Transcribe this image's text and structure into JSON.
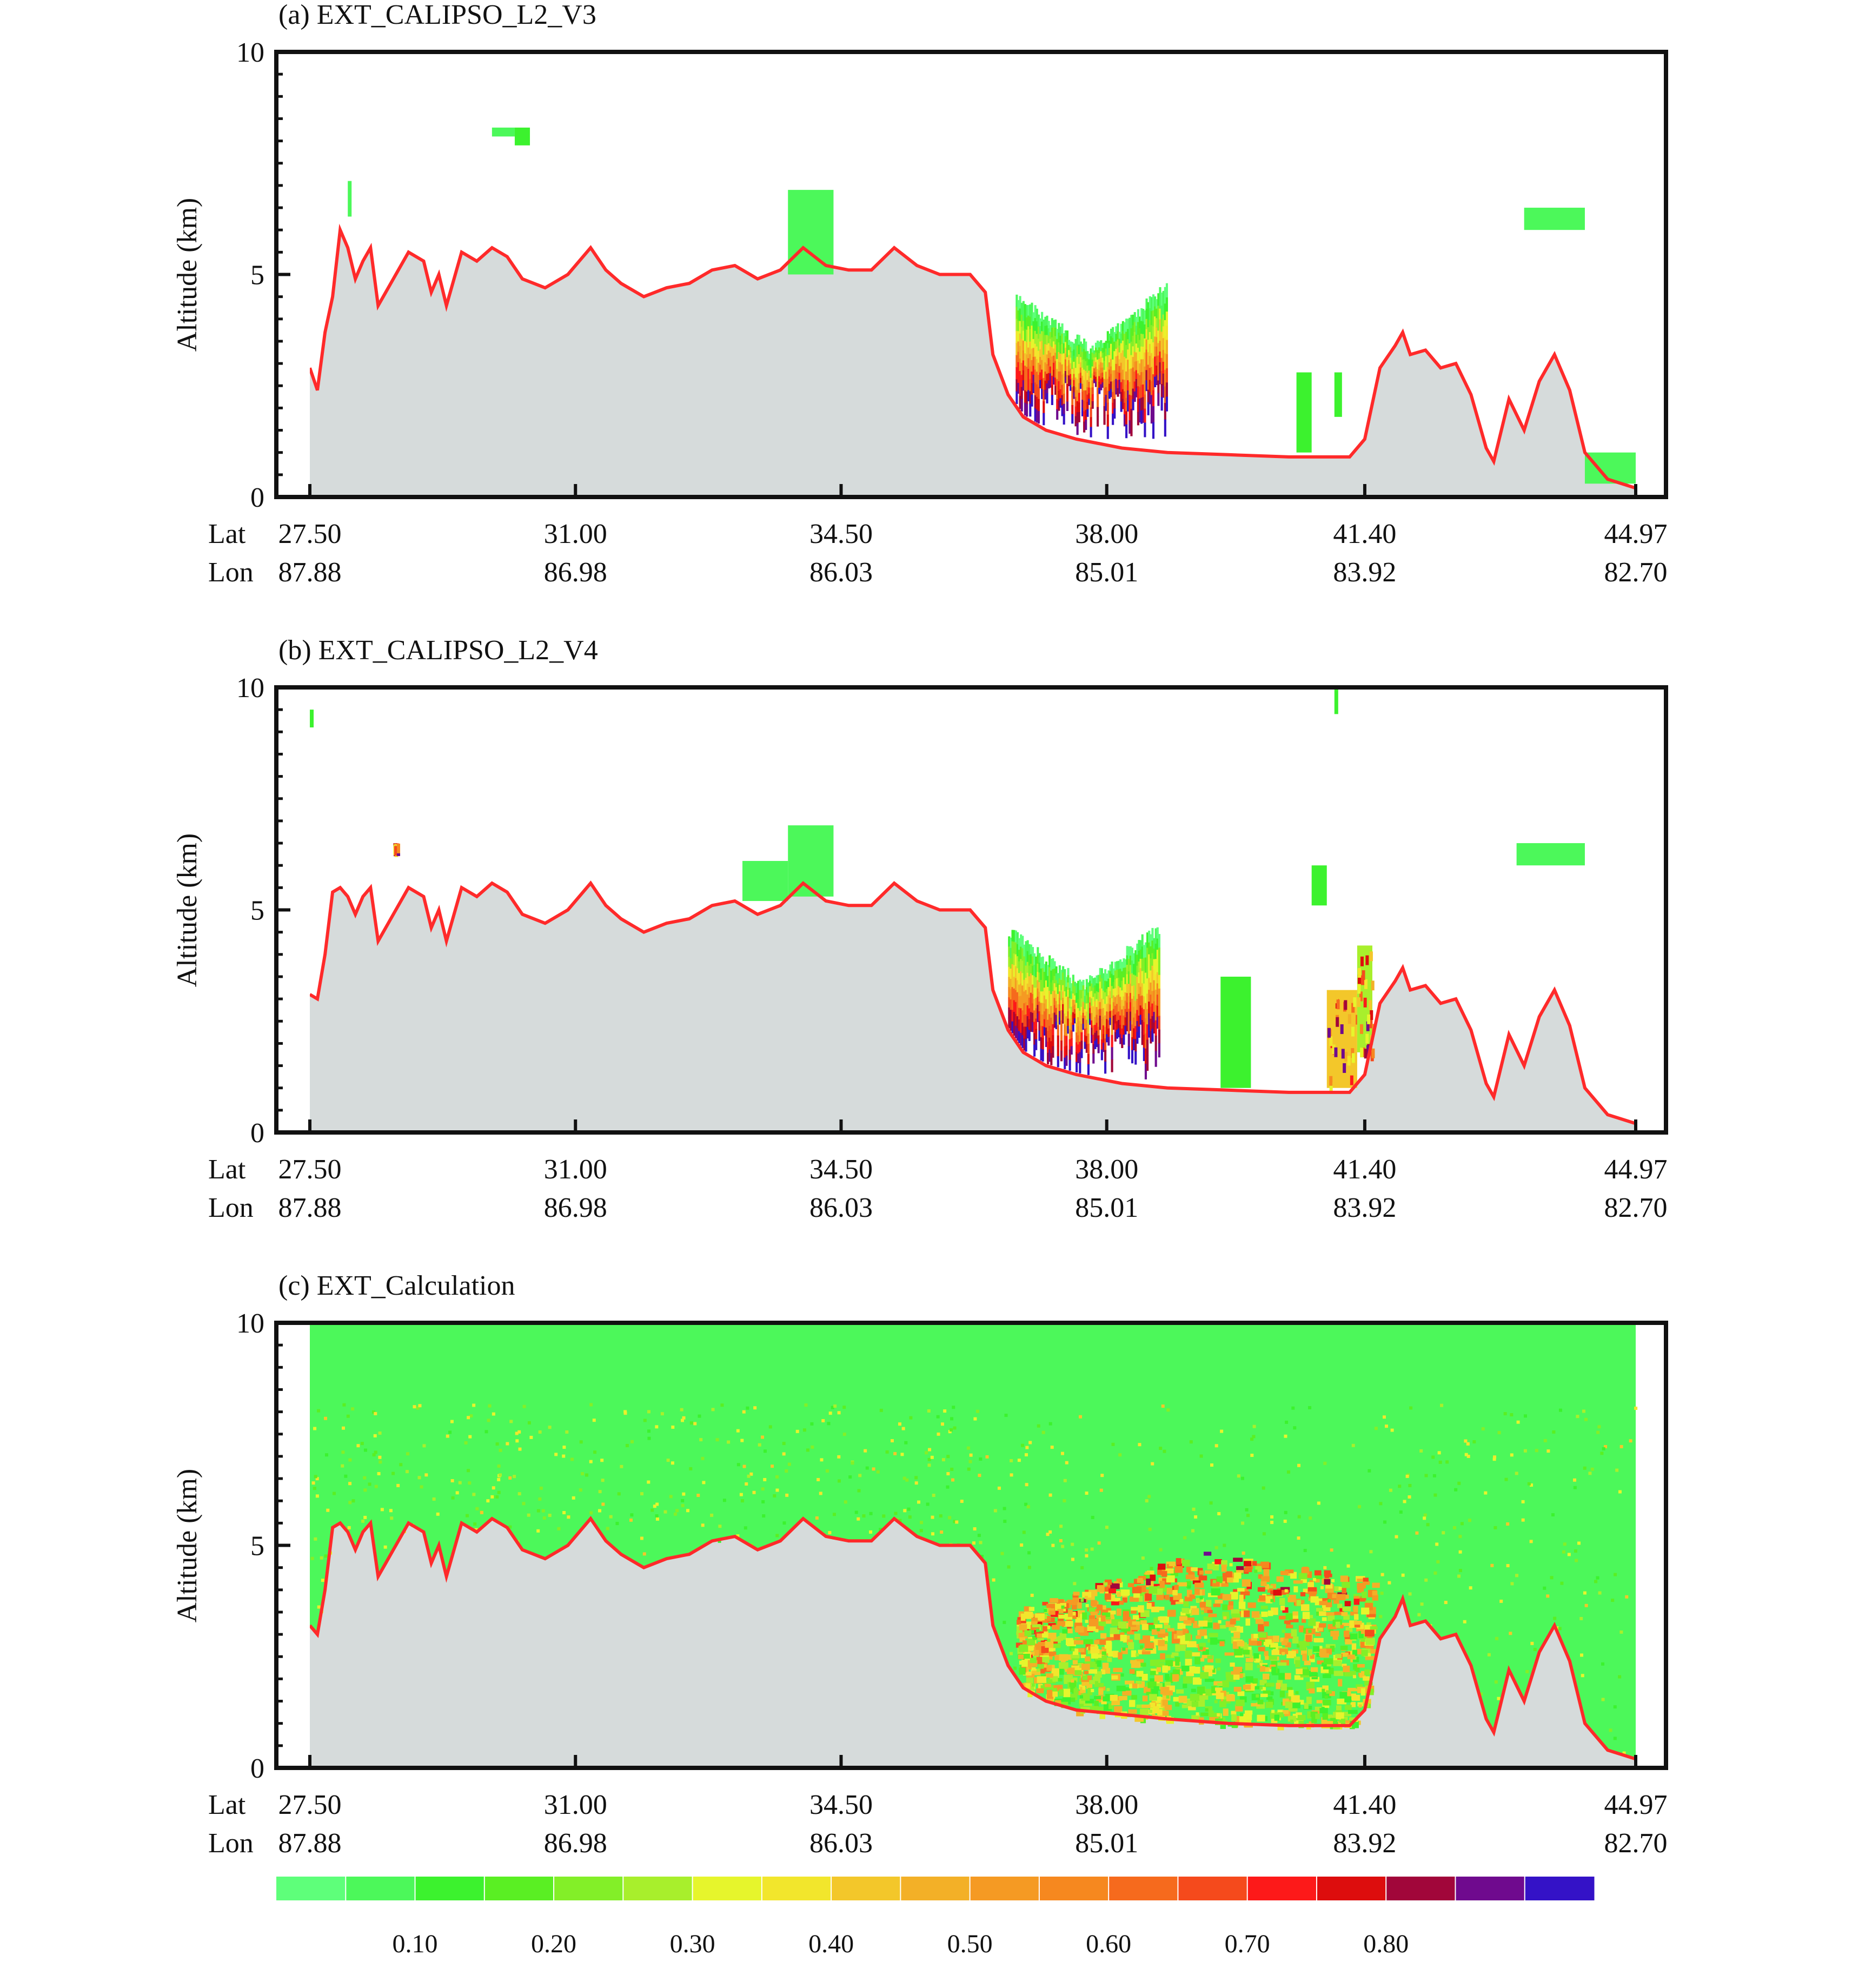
{
  "figure": {
    "colorbar": {
      "colors": [
        "#5eff7a",
        "#4cf85a",
        "#3cf22e",
        "#5aef23",
        "#83ef28",
        "#a8ef2c",
        "#e6f52c",
        "#f2e62c",
        "#f3c72a",
        "#f3b027",
        "#f59a23",
        "#f6881f",
        "#f66a1d",
        "#f54a1c",
        "#fd1919",
        "#dd0d0d",
        "#a1063a",
        "#6f0a8e",
        "#3412c7"
      ],
      "ticks": [
        "0.10",
        "0.20",
        "0.30",
        "0.40",
        "0.50",
        "0.60",
        "0.70",
        "0.80"
      ],
      "tick_boundary_index": [
        2,
        4,
        6,
        8,
        10,
        12,
        14,
        16
      ]
    }
  },
  "chart_data": [
    {
      "type": "heatmap",
      "title": "(a) EXT_CALIPSO_L2_V3",
      "ylabel": "Altitude (km)",
      "ylim": [
        0,
        10
      ],
      "yticks": [
        "0",
        "5",
        "10"
      ],
      "x_row_labels": [
        "Lat",
        "Lon"
      ],
      "x_ticks": [
        {
          "lat": "27.50",
          "lon": "87.88"
        },
        {
          "lat": "31.00",
          "lon": "86.98"
        },
        {
          "lat": "34.50",
          "lon": "86.03"
        },
        {
          "lat": "38.00",
          "lon": "85.01"
        },
        {
          "lat": "41.40",
          "lon": "83.92"
        },
        {
          "lat": "44.97",
          "lon": "82.70"
        }
      ],
      "xlim": [
        27.5,
        44.97
      ],
      "surface_elevation_color": "#ff2a2a",
      "terrain_fill": "#d6dbdb",
      "surface_elevation_km": [
        [
          27.5,
          2.9
        ],
        [
          27.6,
          2.4
        ],
        [
          27.7,
          3.7
        ],
        [
          27.8,
          4.5
        ],
        [
          27.9,
          6.0
        ],
        [
          28.0,
          5.6
        ],
        [
          28.1,
          4.9
        ],
        [
          28.2,
          5.3
        ],
        [
          28.3,
          5.6
        ],
        [
          28.4,
          4.3
        ],
        [
          28.5,
          4.6
        ],
        [
          28.6,
          4.9
        ],
        [
          28.8,
          5.5
        ],
        [
          29.0,
          5.3
        ],
        [
          29.1,
          4.6
        ],
        [
          29.2,
          5.0
        ],
        [
          29.3,
          4.3
        ],
        [
          29.5,
          5.5
        ],
        [
          29.7,
          5.3
        ],
        [
          29.9,
          5.6
        ],
        [
          30.1,
          5.4
        ],
        [
          30.3,
          4.9
        ],
        [
          30.6,
          4.7
        ],
        [
          30.9,
          5.0
        ],
        [
          31.2,
          5.6
        ],
        [
          31.4,
          5.1
        ],
        [
          31.6,
          4.8
        ],
        [
          31.9,
          4.5
        ],
        [
          32.2,
          4.7
        ],
        [
          32.5,
          4.8
        ],
        [
          32.8,
          5.1
        ],
        [
          33.1,
          5.2
        ],
        [
          33.4,
          4.9
        ],
        [
          33.7,
          5.1
        ],
        [
          34.0,
          5.6
        ],
        [
          34.3,
          5.2
        ],
        [
          34.6,
          5.1
        ],
        [
          34.9,
          5.1
        ],
        [
          35.2,
          5.6
        ],
        [
          35.5,
          5.2
        ],
        [
          35.8,
          5.0
        ],
        [
          36.2,
          5.0
        ],
        [
          36.4,
          4.6
        ],
        [
          36.5,
          3.2
        ],
        [
          36.7,
          2.3
        ],
        [
          36.9,
          1.8
        ],
        [
          37.2,
          1.5
        ],
        [
          37.6,
          1.3
        ],
        [
          38.2,
          1.1
        ],
        [
          38.8,
          1.0
        ],
        [
          39.6,
          0.95
        ],
        [
          40.4,
          0.9
        ],
        [
          41.2,
          0.9
        ],
        [
          41.4,
          1.3
        ],
        [
          41.6,
          2.9
        ],
        [
          41.8,
          3.4
        ],
        [
          41.9,
          3.7
        ],
        [
          42.0,
          3.2
        ],
        [
          42.2,
          3.3
        ],
        [
          42.4,
          2.9
        ],
        [
          42.6,
          3.0
        ],
        [
          42.8,
          2.3
        ],
        [
          43.0,
          1.1
        ],
        [
          43.1,
          0.8
        ],
        [
          43.3,
          2.2
        ],
        [
          43.5,
          1.5
        ],
        [
          43.7,
          2.6
        ],
        [
          43.9,
          3.2
        ],
        [
          44.1,
          2.4
        ],
        [
          44.3,
          1.0
        ],
        [
          44.6,
          0.4
        ],
        [
          44.97,
          0.2
        ]
      ],
      "aerosol_layers": [
        {
          "x0": 28.0,
          "x1": 28.05,
          "y0": 6.3,
          "y1": 7.1,
          "v": 0.05
        },
        {
          "x0": 29.9,
          "x1": 30.2,
          "y0": 8.1,
          "y1": 8.3,
          "v": 0.05
        },
        {
          "x0": 30.2,
          "x1": 30.4,
          "y0": 7.9,
          "y1": 8.3,
          "v": 0.15
        },
        {
          "x0": 33.8,
          "x1": 34.4,
          "y0": 5.0,
          "y1": 6.9,
          "v": 0.05
        },
        {
          "x0": 40.5,
          "x1": 40.7,
          "y0": 1.0,
          "y1": 2.8,
          "v": 0.1
        },
        {
          "x0": 41.0,
          "x1": 41.1,
          "y0": 1.8,
          "y1": 2.8,
          "v": 0.15
        },
        {
          "x0": 43.5,
          "x1": 44.3,
          "y0": 6.0,
          "y1": 6.5,
          "v": 0.05
        },
        {
          "x0": 44.3,
          "x1": 44.97,
          "y0": 0.3,
          "y1": 1.0,
          "v": 0.05
        }
      ],
      "plume": {
        "x0": 36.8,
        "x1": 38.8,
        "top_left": 4.5,
        "top_mid": 3.3,
        "top_right": 4.7,
        "bottom": 1.3
      }
    },
    {
      "type": "heatmap",
      "title": "(b) EXT_CALIPSO_L2_V4",
      "ylabel": "Altitude (km)",
      "ylim": [
        0,
        10
      ],
      "yticks": [
        "0",
        "5",
        "10"
      ],
      "x_row_labels": [
        "Lat",
        "Lon"
      ],
      "x_ticks": [
        {
          "lat": "27.50",
          "lon": "87.88"
        },
        {
          "lat": "31.00",
          "lon": "86.98"
        },
        {
          "lat": "34.50",
          "lon": "86.03"
        },
        {
          "lat": "38.00",
          "lon": "85.01"
        },
        {
          "lat": "41.40",
          "lon": "83.92"
        },
        {
          "lat": "44.97",
          "lon": "82.70"
        }
      ],
      "xlim": [
        27.5,
        44.97
      ],
      "surface_elevation_color": "#ff2a2a",
      "terrain_fill": "#d6dbdb",
      "surface_elevation_km": [
        [
          27.5,
          3.1
        ],
        [
          27.6,
          3.0
        ],
        [
          27.7,
          4.0
        ],
        [
          27.8,
          5.4
        ],
        [
          27.9,
          5.5
        ],
        [
          28.0,
          5.3
        ],
        [
          28.1,
          4.9
        ],
        [
          28.2,
          5.3
        ],
        [
          28.3,
          5.5
        ],
        [
          28.4,
          4.3
        ],
        [
          28.5,
          4.6
        ],
        [
          28.6,
          4.9
        ],
        [
          28.8,
          5.5
        ],
        [
          29.0,
          5.3
        ],
        [
          29.1,
          4.6
        ],
        [
          29.2,
          5.0
        ],
        [
          29.3,
          4.3
        ],
        [
          29.5,
          5.5
        ],
        [
          29.7,
          5.3
        ],
        [
          29.9,
          5.6
        ],
        [
          30.1,
          5.4
        ],
        [
          30.3,
          4.9
        ],
        [
          30.6,
          4.7
        ],
        [
          30.9,
          5.0
        ],
        [
          31.2,
          5.6
        ],
        [
          31.4,
          5.1
        ],
        [
          31.6,
          4.8
        ],
        [
          31.9,
          4.5
        ],
        [
          32.2,
          4.7
        ],
        [
          32.5,
          4.8
        ],
        [
          32.8,
          5.1
        ],
        [
          33.1,
          5.2
        ],
        [
          33.4,
          4.9
        ],
        [
          33.7,
          5.1
        ],
        [
          34.0,
          5.6
        ],
        [
          34.3,
          5.2
        ],
        [
          34.6,
          5.1
        ],
        [
          34.9,
          5.1
        ],
        [
          35.2,
          5.6
        ],
        [
          35.5,
          5.2
        ],
        [
          35.8,
          5.0
        ],
        [
          36.2,
          5.0
        ],
        [
          36.4,
          4.6
        ],
        [
          36.5,
          3.2
        ],
        [
          36.7,
          2.3
        ],
        [
          36.9,
          1.8
        ],
        [
          37.2,
          1.5
        ],
        [
          37.6,
          1.3
        ],
        [
          38.2,
          1.1
        ],
        [
          38.8,
          1.0
        ],
        [
          39.6,
          0.95
        ],
        [
          40.4,
          0.9
        ],
        [
          41.2,
          0.9
        ],
        [
          41.4,
          1.3
        ],
        [
          41.6,
          2.9
        ],
        [
          41.8,
          3.4
        ],
        [
          41.9,
          3.7
        ],
        [
          42.0,
          3.2
        ],
        [
          42.2,
          3.3
        ],
        [
          42.4,
          2.9
        ],
        [
          42.6,
          3.0
        ],
        [
          42.8,
          2.3
        ],
        [
          43.0,
          1.1
        ],
        [
          43.1,
          0.8
        ],
        [
          43.3,
          2.2
        ],
        [
          43.5,
          1.5
        ],
        [
          43.7,
          2.6
        ],
        [
          43.9,
          3.2
        ],
        [
          44.1,
          2.4
        ],
        [
          44.3,
          1.0
        ],
        [
          44.6,
          0.4
        ],
        [
          44.97,
          0.2
        ]
      ],
      "aerosol_layers": [
        {
          "x0": 27.5,
          "x1": 27.55,
          "y0": 9.1,
          "y1": 9.5,
          "v": 0.15
        },
        {
          "x0": 28.6,
          "x1": 28.65,
          "y0": 6.4,
          "y1": 6.5,
          "v": 0.8
        },
        {
          "x0": 33.2,
          "x1": 33.8,
          "y0": 5.2,
          "y1": 6.1,
          "v": 0.05
        },
        {
          "x0": 33.8,
          "x1": 34.4,
          "y0": 5.3,
          "y1": 6.9,
          "v": 0.05
        },
        {
          "x0": 40.7,
          "x1": 40.9,
          "y0": 5.1,
          "y1": 6.0,
          "v": 0.15
        },
        {
          "x0": 41.0,
          "x1": 41.05,
          "y0": 9.4,
          "y1": 10.0,
          "v": 0.15
        },
        {
          "x0": 43.4,
          "x1": 44.3,
          "y0": 6.0,
          "y1": 6.5,
          "v": 0.05
        },
        {
          "x0": 39.5,
          "x1": 39.9,
          "y0": 1.0,
          "y1": 3.5,
          "v": 0.15
        },
        {
          "x0": 40.9,
          "x1": 41.3,
          "y0": 1.0,
          "y1": 3.2,
          "v": 0.4
        },
        {
          "x0": 41.3,
          "x1": 41.5,
          "y0": 1.8,
          "y1": 4.2,
          "v": 0.25
        }
      ],
      "plume": {
        "x0": 36.7,
        "x1": 38.7,
        "top_left": 4.5,
        "top_mid": 3.3,
        "top_right": 4.6,
        "bottom": 1.2
      }
    },
    {
      "type": "heatmap",
      "title": "(c) EXT_Calculation",
      "ylabel": "Altitude (km)",
      "ylim": [
        0,
        10
      ],
      "yticks": [
        "0",
        "5",
        "10"
      ],
      "x_row_labels": [
        "Lat",
        "Lon"
      ],
      "x_ticks": [
        {
          "lat": "27.50",
          "lon": "87.88"
        },
        {
          "lat": "31.00",
          "lon": "86.98"
        },
        {
          "lat": "34.50",
          "lon": "86.03"
        },
        {
          "lat": "38.00",
          "lon": "85.01"
        },
        {
          "lat": "41.40",
          "lon": "83.92"
        },
        {
          "lat": "44.97",
          "lon": "82.70"
        }
      ],
      "xlim": [
        27.5,
        44.97
      ],
      "surface_elevation_color": "#ff2a2a",
      "terrain_fill": "#d6dbdb",
      "background_extinction": 0.05,
      "surface_elevation_km": [
        [
          27.5,
          3.2
        ],
        [
          27.6,
          3.0
        ],
        [
          27.7,
          4.0
        ],
        [
          27.8,
          5.4
        ],
        [
          27.9,
          5.5
        ],
        [
          28.0,
          5.3
        ],
        [
          28.1,
          4.9
        ],
        [
          28.2,
          5.3
        ],
        [
          28.3,
          5.5
        ],
        [
          28.4,
          4.3
        ],
        [
          28.5,
          4.6
        ],
        [
          28.6,
          4.9
        ],
        [
          28.8,
          5.5
        ],
        [
          29.0,
          5.3
        ],
        [
          29.1,
          4.6
        ],
        [
          29.2,
          5.0
        ],
        [
          29.3,
          4.3
        ],
        [
          29.5,
          5.5
        ],
        [
          29.7,
          5.3
        ],
        [
          29.9,
          5.6
        ],
        [
          30.1,
          5.4
        ],
        [
          30.3,
          4.9
        ],
        [
          30.6,
          4.7
        ],
        [
          30.9,
          5.0
        ],
        [
          31.2,
          5.6
        ],
        [
          31.4,
          5.1
        ],
        [
          31.6,
          4.8
        ],
        [
          31.9,
          4.5
        ],
        [
          32.2,
          4.7
        ],
        [
          32.5,
          4.8
        ],
        [
          32.8,
          5.1
        ],
        [
          33.1,
          5.2
        ],
        [
          33.4,
          4.9
        ],
        [
          33.7,
          5.1
        ],
        [
          34.0,
          5.6
        ],
        [
          34.3,
          5.2
        ],
        [
          34.6,
          5.1
        ],
        [
          34.9,
          5.1
        ],
        [
          35.2,
          5.6
        ],
        [
          35.5,
          5.2
        ],
        [
          35.8,
          5.0
        ],
        [
          36.2,
          5.0
        ],
        [
          36.4,
          4.6
        ],
        [
          36.5,
          3.2
        ],
        [
          36.7,
          2.3
        ],
        [
          36.9,
          1.8
        ],
        [
          37.2,
          1.5
        ],
        [
          37.6,
          1.3
        ],
        [
          38.2,
          1.2
        ],
        [
          38.8,
          1.1
        ],
        [
          39.6,
          1.0
        ],
        [
          40.4,
          0.95
        ],
        [
          41.2,
          0.95
        ],
        [
          41.4,
          1.3
        ],
        [
          41.6,
          2.9
        ],
        [
          41.8,
          3.4
        ],
        [
          41.9,
          3.8
        ],
        [
          42.0,
          3.2
        ],
        [
          42.2,
          3.3
        ],
        [
          42.4,
          2.9
        ],
        [
          42.6,
          3.0
        ],
        [
          42.8,
          2.3
        ],
        [
          43.0,
          1.1
        ],
        [
          43.1,
          0.8
        ],
        [
          43.3,
          2.2
        ],
        [
          43.5,
          1.5
        ],
        [
          43.7,
          2.6
        ],
        [
          43.9,
          3.2
        ],
        [
          44.1,
          2.4
        ],
        [
          44.3,
          1.0
        ],
        [
          44.6,
          0.4
        ],
        [
          44.97,
          0.2
        ]
      ],
      "dust_region": {
        "x0": 36.8,
        "x1": 41.5,
        "top_left": 3.6,
        "top_mid": 4.9,
        "top_right": 4.3,
        "bottom": 1.2
      }
    }
  ]
}
